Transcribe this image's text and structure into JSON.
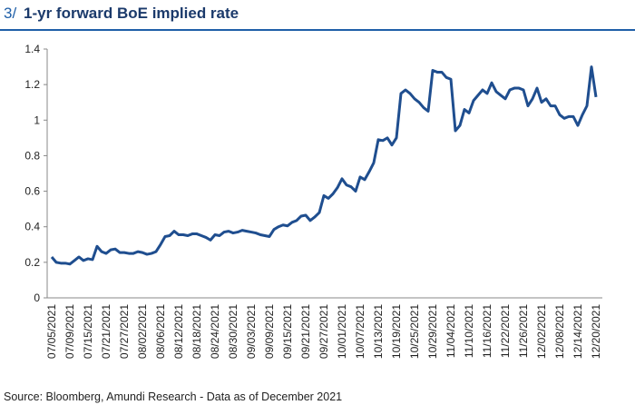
{
  "header": {
    "number": "3/",
    "title": "1-yr forward BoE implied rate"
  },
  "chart_data": {
    "type": "line",
    "categories": [
      "07/05/2021",
      null,
      null,
      null,
      "07/09/2021",
      null,
      null,
      null,
      "07/15/2021",
      null,
      null,
      null,
      "07/21/2021",
      null,
      null,
      null,
      "07/27/2021",
      null,
      null,
      null,
      "08/02/2021",
      null,
      null,
      null,
      "08/06/2021",
      null,
      null,
      null,
      "08/12/2021",
      null,
      null,
      null,
      "08/18/2021",
      null,
      null,
      null,
      "08/24/2021",
      null,
      null,
      null,
      "08/30/2021",
      null,
      null,
      null,
      "09/03/2021",
      null,
      null,
      null,
      "09/09/2021",
      null,
      null,
      null,
      "09/15/2021",
      null,
      null,
      null,
      "09/21/2021",
      null,
      null,
      null,
      "09/27/2021",
      null,
      null,
      null,
      "10/01/2021",
      null,
      null,
      null,
      "10/07/2021",
      null,
      null,
      null,
      "10/13/2021",
      null,
      null,
      null,
      "10/19/2021",
      null,
      null,
      null,
      "10/25/2021",
      null,
      null,
      null,
      "10/29/2021",
      null,
      null,
      null,
      "11/04/2021",
      null,
      null,
      null,
      "11/10/2021",
      null,
      null,
      null,
      "11/16/2021",
      null,
      null,
      null,
      "11/22/2021",
      null,
      null,
      null,
      "11/26/2021",
      null,
      null,
      null,
      "12/02/2021",
      null,
      null,
      null,
      "12/08/2021",
      null,
      null,
      null,
      "12/14/2021",
      null,
      null,
      null,
      "12/20/2021"
    ],
    "values": [
      0.23,
      0.2,
      0.195,
      0.195,
      0.19,
      0.21,
      0.23,
      0.21,
      0.22,
      0.215,
      0.29,
      0.26,
      0.25,
      0.27,
      0.275,
      0.255,
      0.255,
      0.25,
      0.25,
      0.26,
      0.255,
      0.245,
      0.25,
      0.26,
      0.3,
      0.345,
      0.35,
      0.375,
      0.355,
      0.355,
      0.35,
      0.36,
      0.36,
      0.35,
      0.34,
      0.325,
      0.355,
      0.35,
      0.37,
      0.375,
      0.365,
      0.37,
      0.38,
      0.375,
      0.37,
      0.365,
      0.355,
      0.35,
      0.345,
      0.385,
      0.4,
      0.41,
      0.405,
      0.425,
      0.435,
      0.46,
      0.465,
      0.435,
      0.455,
      0.48,
      0.575,
      0.56,
      0.585,
      0.62,
      0.67,
      0.635,
      0.625,
      0.6,
      0.68,
      0.665,
      0.71,
      0.76,
      0.89,
      0.885,
      0.9,
      0.86,
      0.9,
      1.15,
      1.17,
      1.15,
      1.12,
      1.1,
      1.07,
      1.05,
      1.28,
      1.27,
      1.27,
      1.24,
      1.23,
      0.94,
      0.97,
      1.06,
      1.04,
      1.11,
      1.14,
      1.17,
      1.15,
      1.21,
      1.16,
      1.14,
      1.12,
      1.17,
      1.18,
      1.18,
      1.17,
      1.08,
      1.12,
      1.18,
      1.1,
      1.12,
      1.08,
      1.08,
      1.03,
      1.01,
      1.02,
      1.02,
      0.97,
      1.03,
      1.08,
      1.3,
      1.13
    ],
    "color": "#1f4e8f",
    "ylim": [
      0,
      1.4
    ],
    "yticks": [
      0,
      0.2,
      0.4,
      0.6,
      0.8,
      1,
      1.2,
      1.4
    ],
    "source": "Source: Bloomberg, Amundi Research - Data as of December 2021"
  }
}
